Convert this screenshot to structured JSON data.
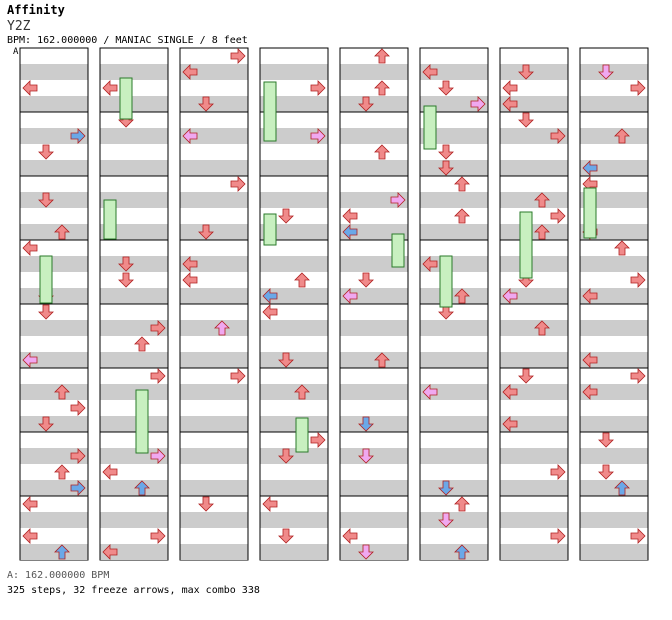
{
  "song": {
    "title": "Affinity",
    "artist": "Y2Z",
    "info": "BPM: 162.000000 / MANIAC SINGLE / 8 feet"
  },
  "footer": {
    "bpm_line": "A: 162.000000 BPM",
    "stats_line": "325 steps, 32 freeze arrows, max combo 338"
  },
  "marker": "A",
  "colors": {
    "quarter": "#f08a8a",
    "eighth": "#6aa8e8",
    "sixteenth": "#f0a8f0",
    "freeze": "#c8f0c0",
    "band": "#cccccc"
  },
  "columns": 8
}
